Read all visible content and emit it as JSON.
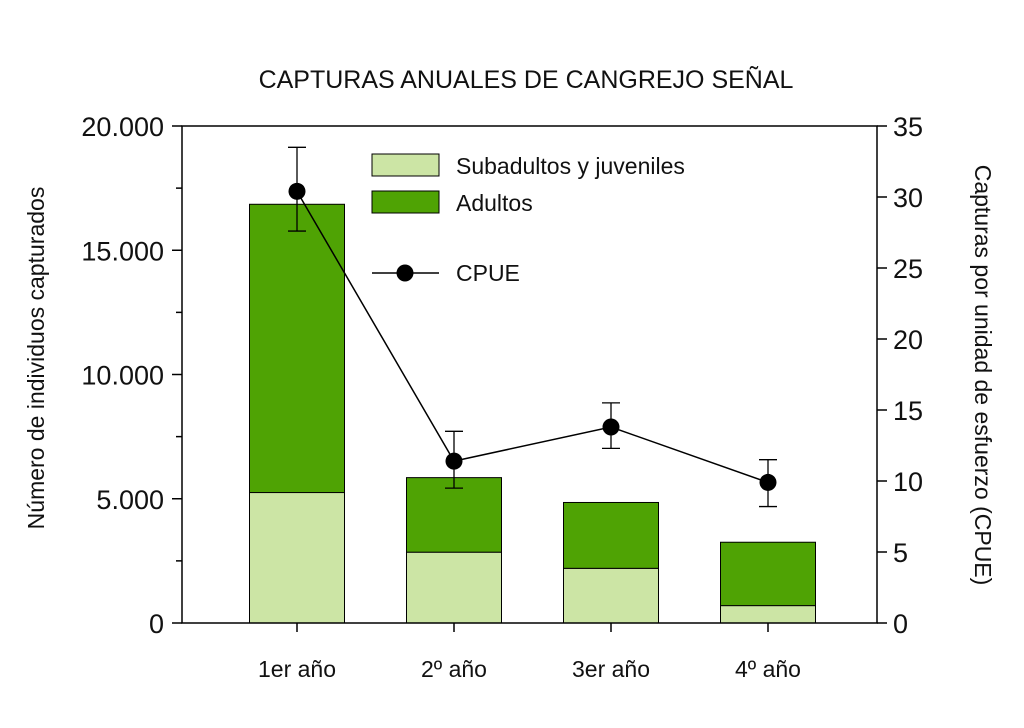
{
  "chart_data": {
    "type": "bar",
    "title": "CAPTURAS ANUALES DE CANGREJO SEÑAL",
    "categories": [
      "1er año",
      "2º año",
      "3er año",
      "4º año"
    ],
    "ylabel": "Número de individuos capturados",
    "y2label": "Capturas por unidad de esfuerzo (CPUE)",
    "ylim": [
      0,
      20000
    ],
    "y2lim": [
      0,
      35
    ],
    "yticks": [
      "0",
      "5.000",
      "10.000",
      "15.000",
      "20.000"
    ],
    "y2ticks": [
      "0",
      "5",
      "10",
      "15",
      "20",
      "25",
      "30",
      "35"
    ],
    "stacked": true,
    "series": [
      {
        "name": "Subadultos y juveniles",
        "values": [
          5250,
          2850,
          2200,
          700
        ],
        "color": "#cce5a5"
      },
      {
        "name": "Adultos",
        "values": [
          11600,
          3000,
          2650,
          2550
        ],
        "color": "#4fa304"
      }
    ],
    "line_series": {
      "name": "CPUE",
      "values": [
        30.4,
        11.4,
        13.8,
        9.9
      ],
      "error_low": [
        27.6,
        9.5,
        12.3,
        8.2
      ],
      "error_high": [
        33.5,
        13.5,
        15.5,
        11.5
      ],
      "color": "#000000"
    }
  }
}
